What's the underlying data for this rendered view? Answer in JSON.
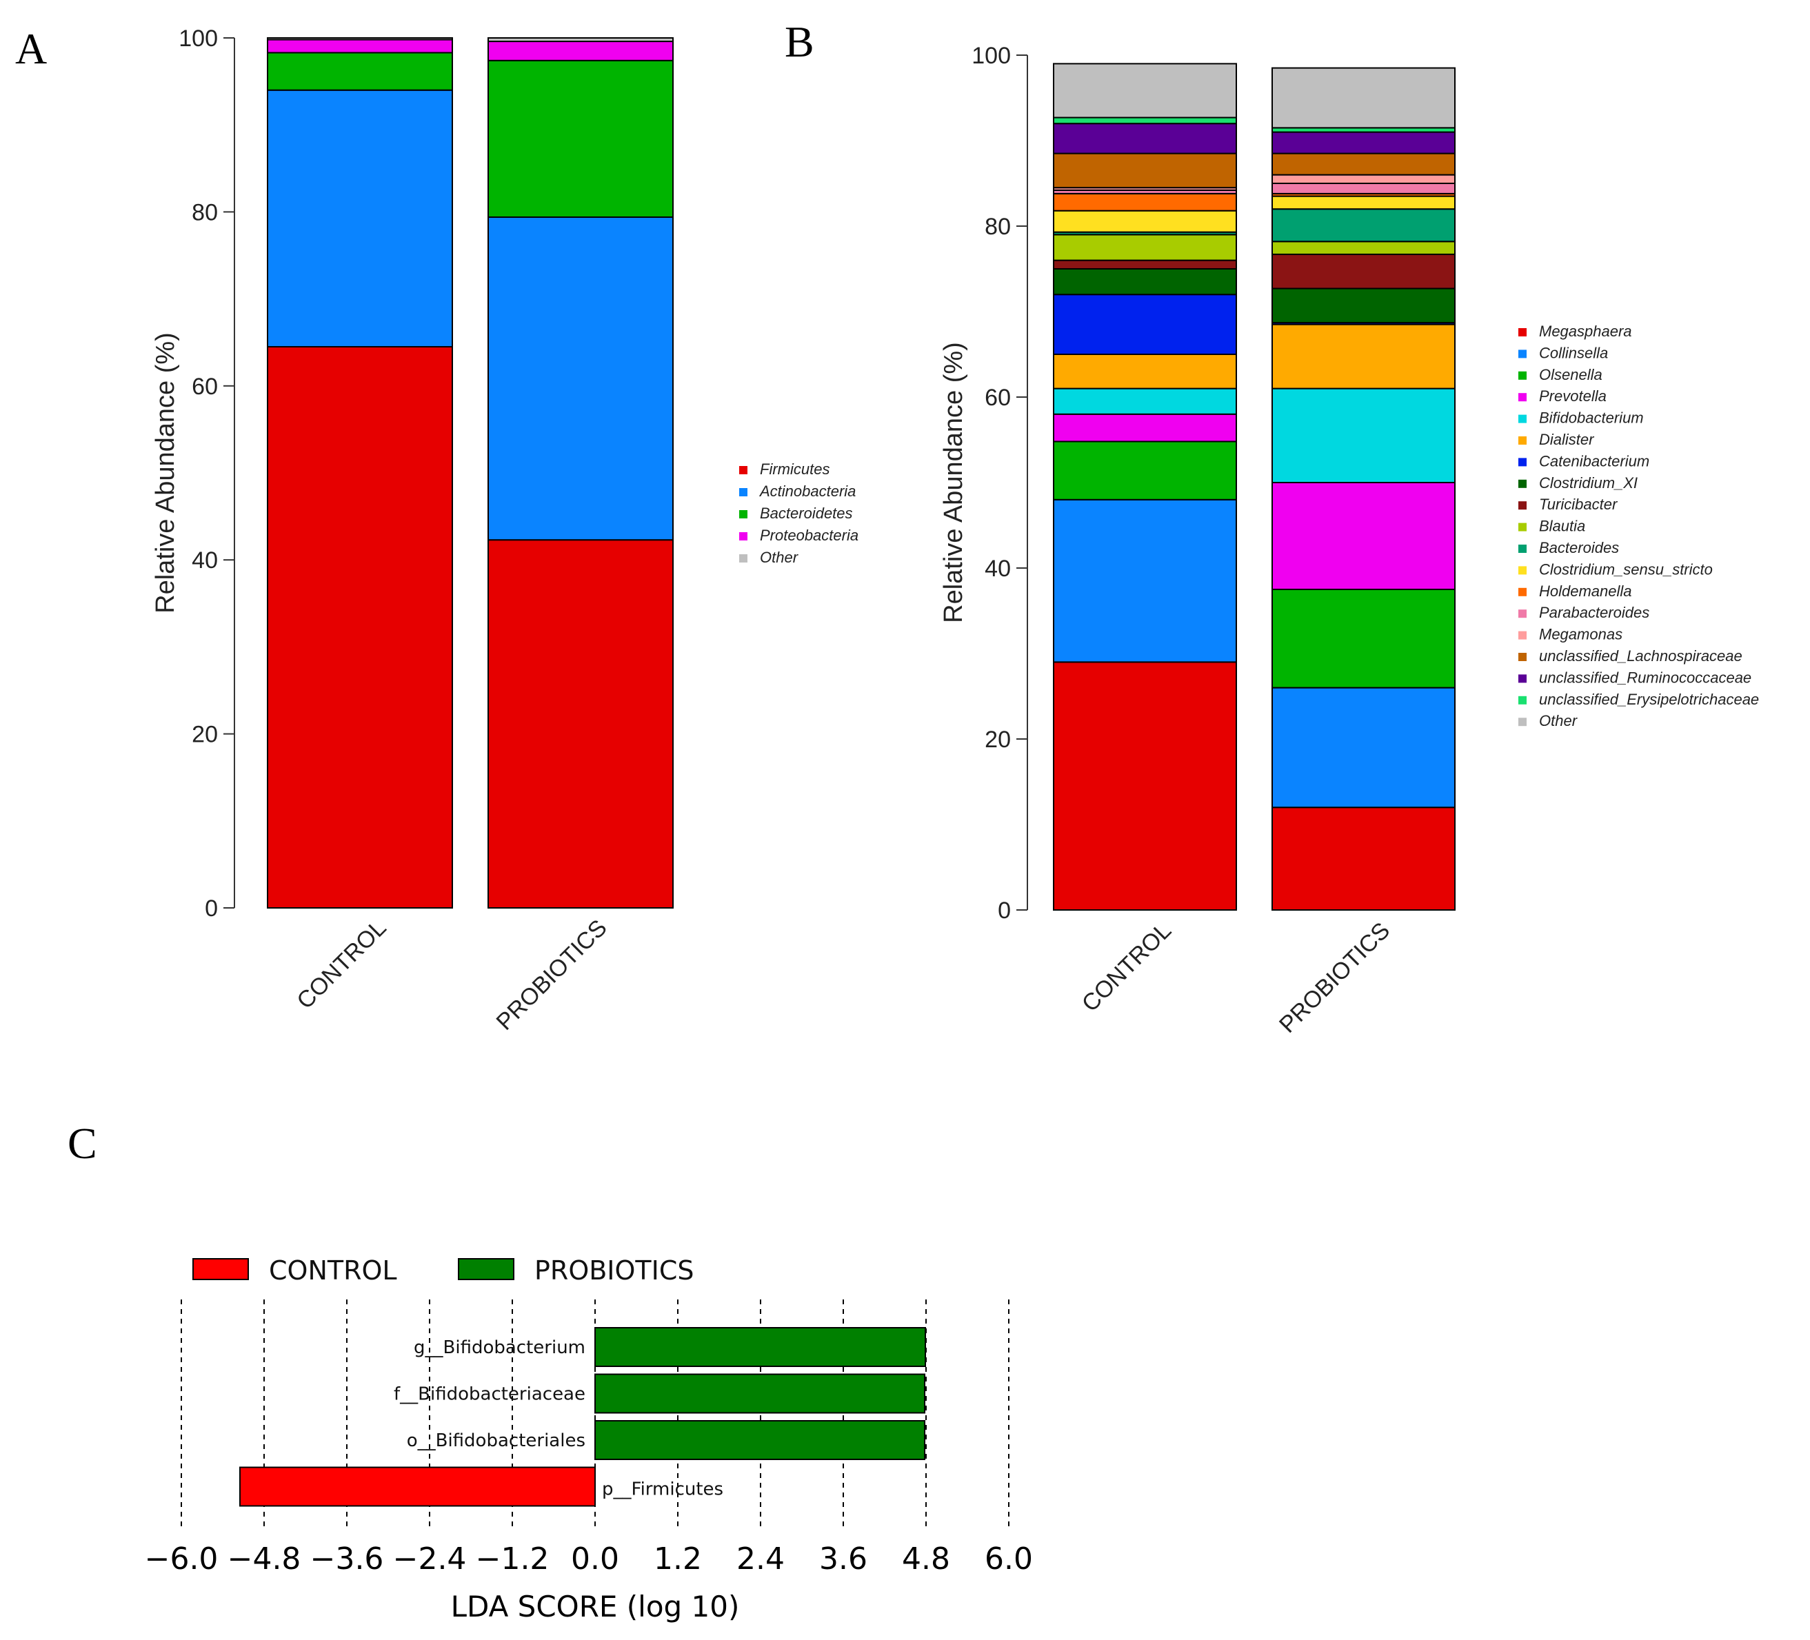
{
  "chart_data": [
    {
      "panel": "A",
      "type": "bar",
      "stacked": true,
      "ylabel": "Relative Abundance (%)",
      "xlabel": "",
      "ylim": [
        0,
        100
      ],
      "yticks": [
        0,
        20,
        40,
        60,
        80,
        100
      ],
      "categories": [
        "CONTROL",
        "PROBIOTICS"
      ],
      "series": [
        {
          "name": "Firmicutes",
          "color": "#e60000",
          "values": [
            64.5,
            42.3
          ]
        },
        {
          "name": "Actinobacteria",
          "color": "#0a84ff",
          "values": [
            29.5,
            37.1
          ]
        },
        {
          "name": "Bacteroidetes",
          "color": "#00b400",
          "values": [
            4.3,
            18.0
          ]
        },
        {
          "name": "Proteobacteria",
          "color": "#f000f0",
          "values": [
            1.5,
            2.2
          ]
        },
        {
          "name": "Other",
          "color": "#bfbfbf",
          "values": [
            0.2,
            0.4
          ]
        }
      ],
      "legend": "right"
    },
    {
      "panel": "B",
      "type": "bar",
      "stacked": true,
      "ylabel": "Relative Abundance (%)",
      "xlabel": "",
      "ylim": [
        0,
        100
      ],
      "yticks": [
        0,
        20,
        40,
        60,
        80,
        100
      ],
      "categories": [
        "CONTROL",
        "PROBIOTICS"
      ],
      "series": [
        {
          "name": "Megasphaera",
          "color": "#e60000",
          "values": [
            29.0,
            12.0
          ]
        },
        {
          "name": "Collinsella",
          "color": "#0a84ff",
          "values": [
            19.0,
            14.0
          ]
        },
        {
          "name": "Olsenella",
          "color": "#00b400",
          "values": [
            6.8,
            11.5
          ]
        },
        {
          "name": "Prevotella",
          "color": "#f000f0",
          "values": [
            3.2,
            12.5
          ]
        },
        {
          "name": "Bifidobacterium",
          "color": "#00d8e0",
          "values": [
            3.0,
            11.0
          ]
        },
        {
          "name": "Dialister",
          "color": "#ffaa00",
          "values": [
            4.0,
            7.5
          ]
        },
        {
          "name": "Catenibacterium",
          "color": "#0022ee",
          "values": [
            7.0,
            0.2
          ]
        },
        {
          "name": "Clostridium_XI",
          "color": "#006400",
          "values": [
            3.0,
            4.0
          ]
        },
        {
          "name": "Turicibacter",
          "color": "#8b1414",
          "values": [
            1.0,
            4.0
          ]
        },
        {
          "name": "Blautia",
          "color": "#a8cc00",
          "values": [
            3.0,
            1.5
          ]
        },
        {
          "name": "Bacteroides",
          "color": "#00a070",
          "values": [
            0.3,
            3.8
          ]
        },
        {
          "name": "Clostridium_sensu_stricto",
          "color": "#ffe020",
          "values": [
            2.5,
            1.5
          ]
        },
        {
          "name": "Holdemanella",
          "color": "#ff6a00",
          "values": [
            2.0,
            0.3
          ]
        },
        {
          "name": "Parabacteroides",
          "color": "#f07aa8",
          "values": [
            0.4,
            1.2
          ]
        },
        {
          "name": "Megamonas",
          "color": "#ff9d9d",
          "values": [
            0.3,
            1.0
          ]
        },
        {
          "name": "unclassified_Lachnospiraceae",
          "color": "#c06400",
          "values": [
            4.0,
            2.5
          ]
        },
        {
          "name": "unclassified_Ruminococcaceae",
          "color": "#5a0096",
          "values": [
            3.5,
            2.5
          ]
        },
        {
          "name": "unclassified_Erysipelotrichaceae",
          "color": "#1ae070",
          "values": [
            0.7,
            0.5
          ]
        },
        {
          "name": "Other",
          "color": "#bfbfbf",
          "values": [
            6.3,
            7.0
          ]
        }
      ],
      "legend": "right"
    },
    {
      "panel": "C",
      "type": "bar",
      "orientation": "horizontal",
      "xlabel": "LDA SCORE (log 10)",
      "ylabel": "",
      "xlim": [
        -6.0,
        6.0
      ],
      "xticks": [
        -6.0,
        -4.8,
        -3.6,
        -2.4,
        -1.2,
        0.0,
        1.2,
        2.4,
        3.6,
        4.8,
        6.0
      ],
      "xtick_labels": [
        "−6.0",
        "−4.8",
        "−3.6",
        "−2.4",
        "−1.2",
        "0.0",
        "1.2",
        "2.4",
        "3.6",
        "4.8",
        "6.0"
      ],
      "groups": [
        {
          "name": "CONTROL",
          "color": "#ff0000"
        },
        {
          "name": "PROBIOTICS",
          "color": "#008000"
        }
      ],
      "features": [
        {
          "name": "g__Bifidobacterium",
          "value": 4.79,
          "group": "PROBIOTICS"
        },
        {
          "name": "f__Bifidobacteriaceae",
          "value": 4.78,
          "group": "PROBIOTICS"
        },
        {
          "name": "o__Bifidobacteriales",
          "value": 4.78,
          "group": "PROBIOTICS"
        },
        {
          "name": "p__Firmicutes",
          "value": -5.15,
          "group": "CONTROL"
        }
      ],
      "legend": "top-left"
    }
  ]
}
